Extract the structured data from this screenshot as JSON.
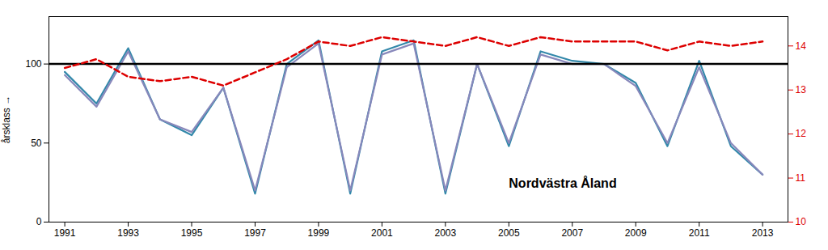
{
  "chart_data": {
    "type": "line",
    "y_label": "årsklass",
    "x": [
      1991,
      1992,
      1993,
      1994,
      1995,
      1996,
      1997,
      1998,
      1999,
      2000,
      2001,
      2002,
      2003,
      2004,
      2005,
      2006,
      2007,
      2008,
      2009,
      2010,
      2011,
      2012,
      2013
    ],
    "series": [
      {
        "color": "#3388AA",
        "values": [
          95,
          75,
          110,
          65,
          55,
          85,
          18,
          100,
          115,
          18,
          108,
          115,
          18,
          100,
          48,
          108,
          102,
          100,
          88,
          48,
          102,
          48,
          30
        ]
      },
      {
        "color": "#8888BB",
        "values": [
          93,
          73,
          108,
          65,
          57,
          85,
          20,
          98,
          113,
          20,
          106,
          113,
          20,
          100,
          50,
          106,
          100,
          100,
          86,
          50,
          98,
          50,
          30
        ]
      },
      {
        "color": "#DD0000",
        "axis": "y2",
        "line_style": "dashed",
        "values": [
          13.5,
          13.7,
          13.3,
          13.2,
          13.3,
          13.1,
          13.4,
          13.7,
          14.1,
          14.0,
          14.2,
          14.1,
          14.0,
          14.2,
          14.0,
          14.2,
          14.1,
          14.1,
          14.1,
          13.9,
          14.1,
          14.0,
          14.1
        ]
      }
    ],
    "hlines": [
      {
        "y": 100,
        "color": "#000000"
      }
    ],
    "annotations": [
      {
        "text": "Nordvästra Åland",
        "x": 2005,
        "y": 22
      }
    ],
    "xlim": [
      1990.5,
      2013.8
    ],
    "xticks": [
      1991,
      1993,
      1995,
      1997,
      1999,
      2001,
      2003,
      2005,
      2007,
      2009,
      2011,
      2013
    ],
    "ylim": [
      0,
      130
    ],
    "yticks": [
      0,
      50,
      100
    ],
    "y2lim": [
      10.0,
      14.667
    ],
    "y2ticks": [
      10,
      11,
      12,
      13,
      14
    ],
    "grid": false
  }
}
